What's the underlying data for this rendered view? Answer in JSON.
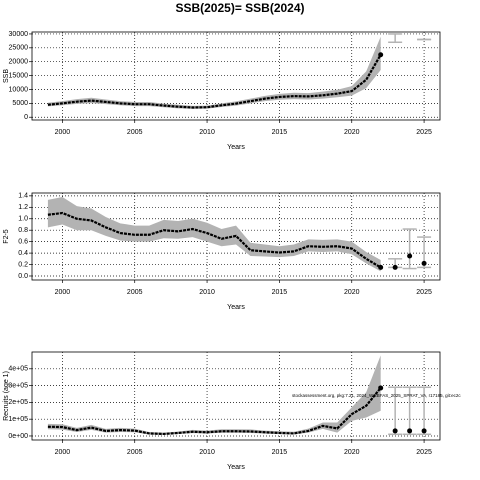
{
  "chart_data": [
    {
      "type": "line",
      "title": "SSB(2025)= SSB(2024)",
      "xlabel": "Years",
      "ylabel": "SSB",
      "x": [
        1999,
        2000,
        2001,
        2002,
        2003,
        2004,
        2005,
        2006,
        2007,
        2008,
        2009,
        2010,
        2011,
        2012,
        2013,
        2014,
        2015,
        2016,
        2017,
        2018,
        2019,
        2020,
        2021,
        2022
      ],
      "values": [
        4500,
        5000,
        5600,
        6000,
        5500,
        5000,
        4700,
        4700,
        4200,
        3800,
        3500,
        3600,
        4300,
        4900,
        5800,
        6700,
        7300,
        7600,
        7500,
        7900,
        8500,
        9400,
        13500,
        22500
      ],
      "band_low": [
        3900,
        4300,
        4800,
        5100,
        4700,
        4300,
        4000,
        4000,
        3600,
        3200,
        3000,
        3100,
        3700,
        4200,
        5000,
        5800,
        6300,
        6500,
        6400,
        6700,
        7200,
        7800,
        10500,
        17000
      ],
      "band_high": [
        5200,
        5800,
        6500,
        7000,
        6400,
        5800,
        5500,
        5500,
        4900,
        4500,
        4100,
        4200,
        5000,
        5700,
        6700,
        7700,
        8400,
        8800,
        8700,
        9200,
        9900,
        11200,
        16500,
        29000
      ],
      "projection": {
        "x": [
          2023,
          2025
        ],
        "values": [
          null,
          null
        ],
        "low": [
          27000,
          28000
        ],
        "high": [
          30000,
          28000
        ]
      },
      "color": "#000000",
      "band_color": "#b3b3b3",
      "xlim": [
        1997.9,
        2026.1
      ],
      "xticks": [
        2000,
        2005,
        2010,
        2015,
        2020,
        2025
      ],
      "ylim": [
        -1000,
        30700
      ],
      "yticks": [
        0,
        5000,
        10000,
        15000,
        20000,
        25000,
        30000
      ],
      "grid": true
    },
    {
      "type": "line",
      "xlabel": "Years",
      "ylabel": "F2-5",
      "x": [
        1999,
        2000,
        2001,
        2002,
        2003,
        2004,
        2005,
        2006,
        2007,
        2008,
        2009,
        2010,
        2011,
        2012,
        2013,
        2014,
        2015,
        2016,
        2017,
        2018,
        2019,
        2020,
        2021,
        2022
      ],
      "values": [
        1.07,
        1.1,
        1.0,
        0.97,
        0.85,
        0.75,
        0.72,
        0.72,
        0.8,
        0.78,
        0.82,
        0.75,
        0.65,
        0.7,
        0.45,
        0.43,
        0.41,
        0.43,
        0.52,
        0.51,
        0.52,
        0.48,
        0.3,
        0.15
      ],
      "band_low": [
        0.85,
        0.9,
        0.8,
        0.8,
        0.7,
        0.62,
        0.6,
        0.6,
        0.66,
        0.65,
        0.68,
        0.6,
        0.52,
        0.55,
        0.35,
        0.34,
        0.33,
        0.35,
        0.43,
        0.42,
        0.43,
        0.38,
        0.22,
        0.08
      ],
      "band_high": [
        1.33,
        1.38,
        1.22,
        1.18,
        1.03,
        0.92,
        0.88,
        0.88,
        0.98,
        0.96,
        1.0,
        0.93,
        0.82,
        0.88,
        0.58,
        0.55,
        0.52,
        0.55,
        0.64,
        0.63,
        0.64,
        0.6,
        0.42,
        0.28
      ],
      "projection": {
        "x": [
          2023,
          2024,
          2025
        ],
        "values": [
          0.15,
          0.35,
          0.22
        ],
        "low": [
          0.15,
          0.13,
          0.15
        ],
        "high": [
          0.3,
          0.82,
          0.68
        ]
      },
      "color": "#000000",
      "band_color": "#b3b3b3",
      "xlim": [
        1997.9,
        2026.1
      ],
      "xticks": [
        2000,
        2005,
        2010,
        2015,
        2020,
        2025
      ],
      "ylim": [
        -0.07,
        1.45
      ],
      "yticks": [
        {
          "value": 0,
          "label": "0.0"
        },
        0.2,
        0.4,
        0.6,
        0.8,
        {
          "value": 1,
          "label": "1.0"
        },
        1.2,
        1.4
      ],
      "grid": true
    },
    {
      "type": "line",
      "xlabel": "Years",
      "ylabel": "Recruits (age 1)",
      "annotation": "stockassessment.org, pkg:7.21, 2024_WGBFAS_2025_SPRAT_VA, r17185, git:ec2c",
      "x": [
        1999,
        2000,
        2001,
        2002,
        2003,
        2004,
        2005,
        2006,
        2007,
        2008,
        2009,
        2010,
        2011,
        2012,
        2013,
        2014,
        2015,
        2016,
        2017,
        2018,
        2019,
        2020,
        2021,
        2022
      ],
      "values": [
        55000,
        53000,
        35000,
        50000,
        30000,
        35000,
        32000,
        15000,
        12000,
        18000,
        25000,
        22000,
        28000,
        28000,
        27000,
        22000,
        18000,
        15000,
        30000,
        60000,
        45000,
        130000,
        180000,
        286000
      ],
      "band_low": [
        40000,
        38000,
        24000,
        36000,
        20000,
        24000,
        22000,
        9000,
        7000,
        12000,
        17000,
        15000,
        19000,
        19000,
        18000,
        14000,
        11000,
        9000,
        20000,
        42000,
        20000,
        90000,
        110000,
        150000
      ],
      "band_high": [
        72000,
        70000,
        48000,
        66000,
        42000,
        48000,
        44000,
        24000,
        20000,
        26000,
        36000,
        32000,
        40000,
        40000,
        39000,
        32000,
        28000,
        25000,
        44000,
        80000,
        80000,
        170000,
        260000,
        480000
      ],
      "projection": {
        "x": [
          2023,
          2024,
          2025
        ],
        "values": [
          30000,
          30000,
          30000
        ],
        "low": [
          10000,
          10000,
          10000
        ],
        "high": [
          290000,
          290000,
          290000
        ]
      },
      "color": "#000000",
      "band_color": "#b3b3b3",
      "xlim": [
        1997.9,
        2026.1
      ],
      "xticks": [
        2000,
        2005,
        2010,
        2015,
        2020,
        2025
      ],
      "ylim": [
        -24000,
        500000
      ],
      "yticks": [
        {
          "value": 0,
          "label": "0e+00"
        },
        {
          "value": 100000,
          "label": "1e+05"
        },
        {
          "value": 200000,
          "label": "2e+05"
        },
        {
          "value": 300000,
          "label": "3e+05"
        },
        {
          "value": 400000,
          "label": "4e+05"
        }
      ],
      "grid": true
    }
  ]
}
